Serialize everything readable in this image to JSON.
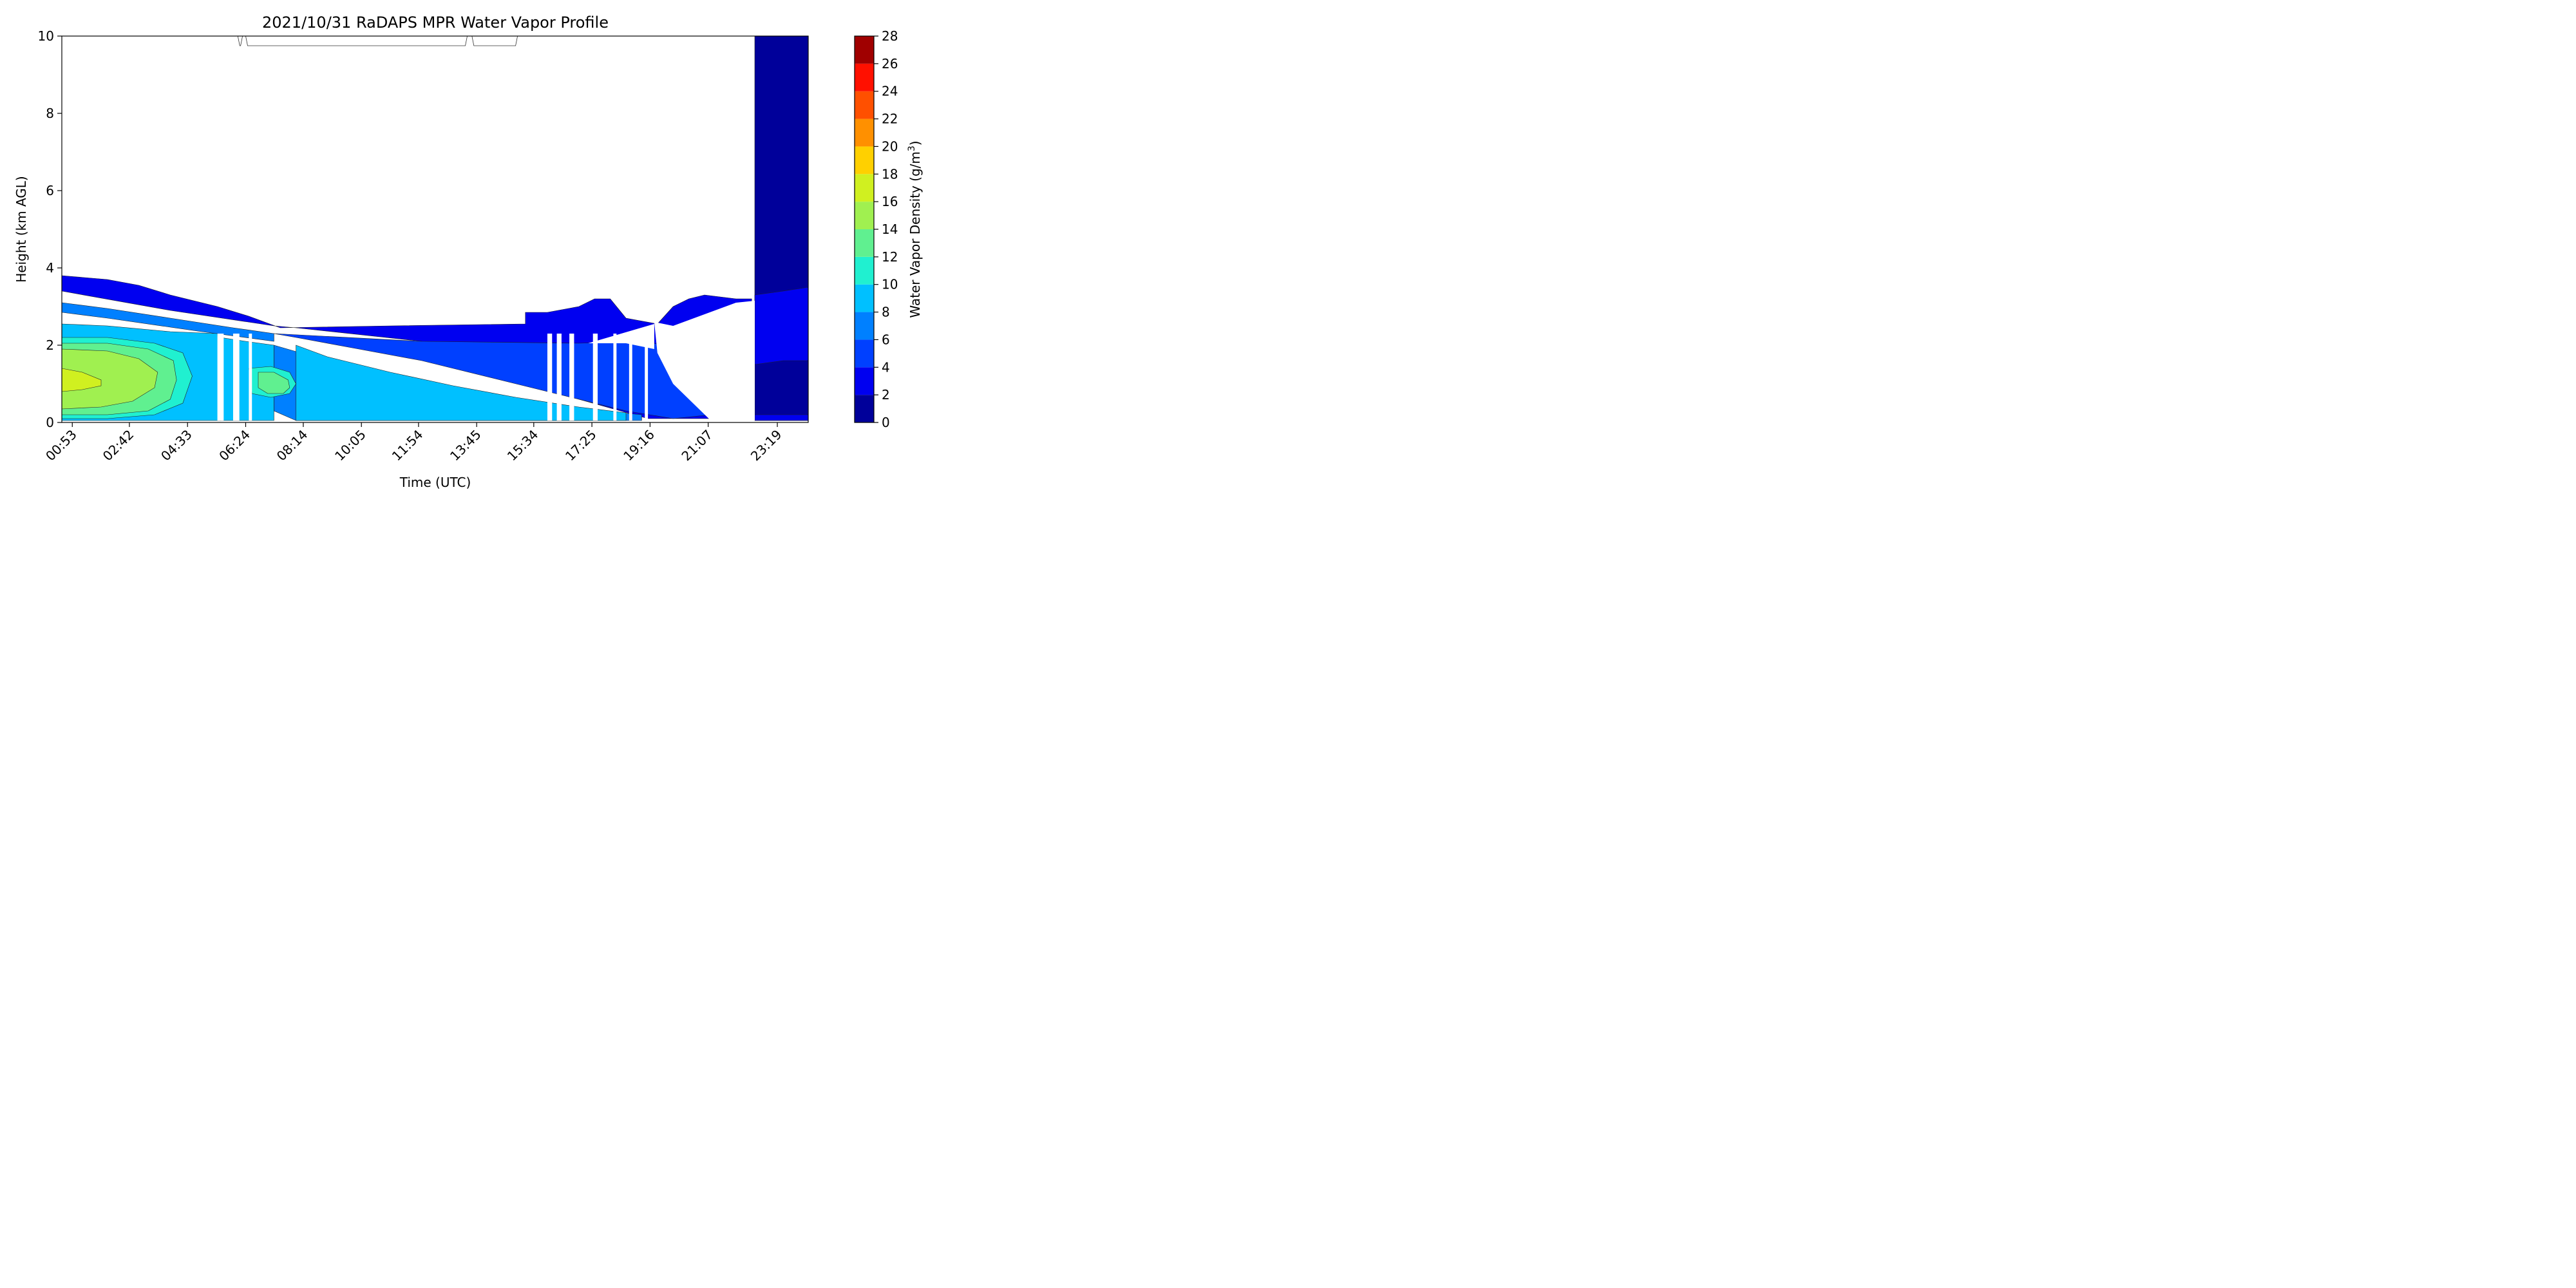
{
  "chart_data": {
    "type": "heatmap",
    "subtype": "filled-contour",
    "title": "2021/10/31 RaDAPS MPR Water Vapor Profile",
    "xlabel": "Time (UTC)",
    "ylabel": "Height (km AGL)",
    "x_tick_labels": [
      "00:53",
      "02:42",
      "04:33",
      "06:24",
      "08:14",
      "10:05",
      "11:54",
      "13:45",
      "15:34",
      "17:25",
      "19:16",
      "21:07",
      "23:19"
    ],
    "x_tick_hours": [
      0.883,
      2.7,
      4.55,
      6.4,
      8.233,
      10.083,
      11.9,
      13.75,
      15.567,
      17.417,
      19.267,
      21.117,
      23.317
    ],
    "xlim_hours": [
      0.55,
      24.3
    ],
    "ylim": [
      0,
      10
    ],
    "y_ticks": [
      0,
      2,
      4,
      6,
      8,
      10
    ],
    "colorbar": {
      "label": "Water Vapor Density (g/m",
      "label_sup": "3",
      "label_end": ")",
      "levels": [
        0,
        2,
        4,
        6,
        8,
        10,
        12,
        14,
        16,
        18,
        20,
        22,
        24,
        26,
        28
      ],
      "colors": [
        "#00009a",
        "#0000f0",
        "#0040ff",
        "#0080ff",
        "#00c0ff",
        "#20f0d0",
        "#60f090",
        "#a0f050",
        "#d0f020",
        "#ffd000",
        "#ff9000",
        "#ff5000",
        "#ff1000",
        "#a00000"
      ]
    },
    "regions": [
      {
        "level": "2-4",
        "pts": [
          [
            0.55,
            3.8
          ],
          [
            2,
            3.7
          ],
          [
            3,
            3.55
          ],
          [
            4,
            3.3
          ],
          [
            5.5,
            3
          ],
          [
            6.5,
            2.75
          ],
          [
            7.5,
            2.45
          ],
          [
            11,
            2.5
          ],
          [
            15.3,
            2.55
          ],
          [
            15.3,
            2.85
          ],
          [
            16,
            2.85
          ],
          [
            17,
            3
          ],
          [
            17.5,
            3.2
          ],
          [
            18,
            3.2
          ],
          [
            18.5,
            2.7
          ],
          [
            19.5,
            2.55
          ],
          [
            20,
            3
          ],
          [
            20.5,
            3.2
          ],
          [
            21,
            3.3
          ],
          [
            22,
            3.2
          ],
          [
            22.5,
            3.2
          ],
          [
            22.5,
            2.3
          ],
          [
            22,
            0.3
          ],
          [
            21.5,
            0.1
          ],
          [
            20,
            0.1
          ],
          [
            19.2,
            0.1
          ],
          [
            17,
            0.6
          ],
          [
            15,
            1.3
          ],
          [
            12,
            2.1
          ],
          [
            8,
            2.45
          ],
          [
            7.3,
            2.5
          ],
          [
            4,
            2.9
          ],
          [
            0.55,
            3.4
          ]
        ]
      },
      {
        "level": "4-6",
        "pts": [
          [
            7.3,
            2.3
          ],
          [
            12,
            2.1
          ],
          [
            17,
            2.05
          ],
          [
            19.2,
            2.1
          ],
          [
            20,
            1.9
          ],
          [
            21.2,
            0.2
          ],
          [
            20,
            0.1
          ],
          [
            18.5,
            0.3
          ],
          [
            15,
            1
          ],
          [
            12,
            1.6
          ],
          [
            10,
            1.9
          ],
          [
            8,
            2.2
          ]
        ]
      },
      {
        "level": "6-8",
        "pts": [
          [
            0.55,
            3.1
          ],
          [
            2,
            2.95
          ],
          [
            4,
            2.7
          ],
          [
            6,
            2.45
          ],
          [
            7.3,
            2.3
          ],
          [
            7.3,
            2.1
          ],
          [
            5,
            2.35
          ],
          [
            2,
            2.7
          ],
          [
            0.55,
            2.85
          ]
        ]
      },
      {
        "level": "6-8",
        "pts": [
          [
            7.3,
            2.0
          ],
          [
            9,
            1.6
          ],
          [
            11,
            1.2
          ],
          [
            13,
            0.9
          ],
          [
            15,
            0.6
          ],
          [
            17,
            0.35
          ],
          [
            19,
            0.2
          ],
          [
            19,
            0.05
          ],
          [
            8,
            0.05
          ],
          [
            7.3,
            0.3
          ]
        ]
      },
      {
        "level": "8-10",
        "pts": [
          [
            8,
            2.0
          ],
          [
            9,
            1.7
          ],
          [
            11,
            1.3
          ],
          [
            13,
            0.95
          ],
          [
            15,
            0.65
          ],
          [
            17,
            0.4
          ],
          [
            18.5,
            0.25
          ],
          [
            18.5,
            0.05
          ],
          [
            8,
            0.05
          ],
          [
            8,
            0.3
          ]
        ]
      },
      {
        "level": "8-10",
        "pts": [
          [
            0.55,
            2.55
          ],
          [
            2,
            2.5
          ],
          [
            4,
            2.35
          ],
          [
            5.5,
            2.3
          ],
          [
            5.6,
            0.05
          ],
          [
            0.55,
            0.05
          ]
        ]
      },
      {
        "level": "8-10",
        "pts": [
          [
            5.6,
            2.2
          ],
          [
            6.4,
            2.1
          ],
          [
            7.3,
            2.0
          ],
          [
            7.3,
            0.05
          ],
          [
            5.6,
            0.05
          ]
        ]
      },
      {
        "level": "10-12",
        "pts": [
          [
            0.55,
            2.2
          ],
          [
            2,
            2.2
          ],
          [
            3.5,
            2.05
          ],
          [
            4.4,
            1.8
          ],
          [
            4.7,
            1.2
          ],
          [
            4.4,
            0.5
          ],
          [
            3.5,
            0.2
          ],
          [
            2,
            0.1
          ],
          [
            0.55,
            0.1
          ]
        ]
      },
      {
        "level": "10-12",
        "pts": [
          [
            6.5,
            1.4
          ],
          [
            7.2,
            1.45
          ],
          [
            7.8,
            1.3
          ],
          [
            8,
            1
          ],
          [
            7.8,
            0.75
          ],
          [
            7.2,
            0.65
          ],
          [
            6.6,
            0.75
          ]
        ]
      },
      {
        "level": "12-14",
        "pts": [
          [
            0.55,
            2.05
          ],
          [
            2,
            2.05
          ],
          [
            3.3,
            1.9
          ],
          [
            4.1,
            1.6
          ],
          [
            4.2,
            1.1
          ],
          [
            4,
            0.6
          ],
          [
            3.3,
            0.3
          ],
          [
            2,
            0.2
          ],
          [
            0.55,
            0.2
          ]
        ]
      },
      {
        "level": "12-14",
        "pts": [
          [
            6.8,
            1.3
          ],
          [
            7.3,
            1.3
          ],
          [
            7.75,
            1.1
          ],
          [
            7.8,
            0.9
          ],
          [
            7.6,
            0.75
          ],
          [
            7.1,
            0.75
          ],
          [
            6.8,
            0.9
          ]
        ]
      },
      {
        "level": "14-16",
        "pts": [
          [
            0.55,
            1.9
          ],
          [
            2,
            1.85
          ],
          [
            3,
            1.65
          ],
          [
            3.6,
            1.3
          ],
          [
            3.5,
            0.9
          ],
          [
            2.8,
            0.55
          ],
          [
            1.8,
            0.4
          ],
          [
            0.55,
            0.35
          ]
        ]
      },
      {
        "level": "16-18",
        "pts": [
          [
            0.55,
            1.4
          ],
          [
            1.2,
            1.3
          ],
          [
            1.8,
            1.1
          ],
          [
            1.8,
            0.95
          ],
          [
            1.2,
            0.85
          ],
          [
            0.55,
            0.8
          ]
        ]
      },
      {
        "level": "0-2",
        "pts": [
          [
            22.6,
            10
          ],
          [
            24.3,
            10
          ],
          [
            24.3,
            0.05
          ],
          [
            22.6,
            0.05
          ]
        ]
      },
      {
        "level": "2-4",
        "pts": [
          [
            22.6,
            3.3
          ],
          [
            23.5,
            3.4
          ],
          [
            24.3,
            3.5
          ],
          [
            24.3,
            0.05
          ],
          [
            22.6,
            0.05
          ]
        ]
      },
      {
        "level": "0-2",
        "pts": [
          [
            22.6,
            1.5
          ],
          [
            23.5,
            1.6
          ],
          [
            24.3,
            1.6
          ],
          [
            24.3,
            0.2
          ],
          [
            22.6,
            0.2
          ]
        ]
      },
      {
        "level": "white",
        "pts": [
          [
            19.4,
            2.6
          ],
          [
            20,
            2.5
          ],
          [
            21,
            2.8
          ],
          [
            22,
            3.1
          ],
          [
            22.6,
            3.15
          ],
          [
            22.6,
            0.05
          ],
          [
            21.2,
            0.05
          ],
          [
            20,
            1.0
          ],
          [
            19.5,
            1.8
          ]
        ]
      },
      {
        "level": "white",
        "pts": [
          [
            17.3,
            2.05
          ],
          [
            19.4,
            2.55
          ],
          [
            19.4,
            1.9
          ],
          [
            18.5,
            2.05
          ]
        ]
      }
    ],
    "gaps": [
      {
        "x0": 5.5,
        "x1": 5.7
      },
      {
        "x0": 6.0,
        "x1": 6.2
      },
      {
        "x0": 6.5,
        "x1": 6.6
      },
      {
        "x0": 16.0,
        "x1": 16.15
      },
      {
        "x0": 16.3,
        "x1": 16.45
      },
      {
        "x0": 16.7,
        "x1": 16.85
      },
      {
        "x0": 17.45,
        "x1": 17.6
      },
      {
        "x0": 18.1,
        "x1": 18.2
      },
      {
        "x0": 18.6,
        "x1": 18.7
      },
      {
        "x0": 19.1,
        "x1": 19.2
      },
      {
        "x0": 21.3,
        "x1": 21.4
      }
    ],
    "top_segments": [
      [
        6.15,
        6.3
      ],
      [
        6.4,
        13.45
      ],
      [
        13.6,
        15.05
      ]
    ]
  }
}
